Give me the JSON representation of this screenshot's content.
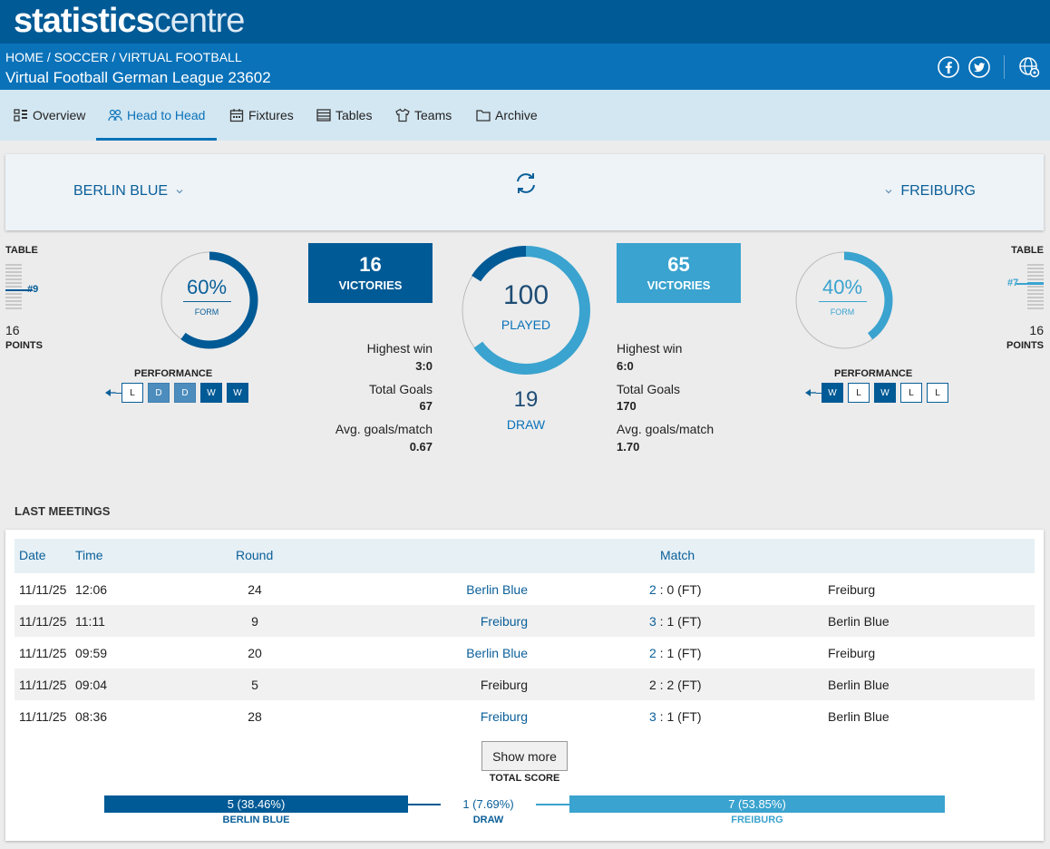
{
  "logo": {
    "bold": "statistics",
    "light": "centre"
  },
  "breadcrumb": "HOME / SOCCER / VIRTUAL FOOTBALL",
  "league_title": "Virtual Football German League 23602",
  "header_icons": [
    "facebook-icon",
    "twitter-icon",
    "globe-settings-icon"
  ],
  "tabs": [
    {
      "label": "Overview",
      "icon": "overview-icon"
    },
    {
      "label": "Head to Head",
      "icon": "head-to-head-icon",
      "active": true
    },
    {
      "label": "Fixtures",
      "icon": "calendar-icon"
    },
    {
      "label": "Tables",
      "icon": "tables-icon"
    },
    {
      "label": "Teams",
      "icon": "shirt-icon"
    },
    {
      "label": "Archive",
      "icon": "folder-icon"
    }
  ],
  "home": {
    "name": "BERLIN BLUE",
    "table_label": "TABLE",
    "position": "#9",
    "points": "16",
    "points_label": "POINTS",
    "form_value": "60%",
    "form_fraction": 0.6,
    "form_label": "FORM",
    "performance_label": "PERFORMANCE",
    "performance": [
      "L",
      "D",
      "D",
      "W",
      "W"
    ],
    "victories": "16",
    "victories_label": "VICTORIES",
    "highest_win_label": "Highest win",
    "highest_win": "3:0",
    "total_goals_label": "Total Goals",
    "total_goals": "67",
    "avg_goals_label": "Avg. goals/match",
    "avg_goals": "0.67",
    "color": "#005a96"
  },
  "away": {
    "name": "FREIBURG",
    "table_label": "TABLE",
    "position": "#7",
    "points": "16",
    "points_label": "POINTS",
    "form_value": "40%",
    "form_fraction": 0.4,
    "form_label": "FORM",
    "performance_label": "PERFORMANCE",
    "performance": [
      "W",
      "L",
      "W",
      "L",
      "L"
    ],
    "victories": "65",
    "victories_label": "VICTORIES",
    "highest_win_label": "Highest win",
    "highest_win": "6:0",
    "total_goals_label": "Total Goals",
    "total_goals": "170",
    "avg_goals_label": "Avg. goals/match",
    "avg_goals": "1.70",
    "color": "#3aa3cf"
  },
  "center": {
    "played": "100",
    "played_label": "PLAYED",
    "draw": "19",
    "draw_label": "DRAW",
    "home_share": 0.16,
    "away_share": 0.65
  },
  "last_meetings": {
    "title": "LAST MEETINGS",
    "headers": {
      "date": "Date",
      "time": "Time",
      "round": "Round",
      "match": "Match"
    },
    "rows": [
      {
        "date": "11/11/25",
        "time": "12:06",
        "round": "24",
        "home": "Berlin Blue",
        "home_win": true,
        "hs": "2",
        "as": "0",
        "status": "(FT)",
        "away": "Freiburg"
      },
      {
        "date": "11/11/25",
        "time": "11:11",
        "round": "9",
        "home": "Freiburg",
        "home_win": true,
        "hs": "3",
        "as": "1",
        "status": "(FT)",
        "away": "Berlin Blue"
      },
      {
        "date": "11/11/25",
        "time": "09:59",
        "round": "20",
        "home": "Berlin Blue",
        "home_win": true,
        "hs": "2",
        "as": "1",
        "status": "(FT)",
        "away": "Freiburg"
      },
      {
        "date": "11/11/25",
        "time": "09:04",
        "round": "5",
        "home": "Freiburg",
        "home_win": false,
        "hs": "2",
        "as": "2",
        "status": "(FT)",
        "away": "Berlin Blue"
      },
      {
        "date": "11/11/25",
        "time": "08:36",
        "round": "28",
        "home": "Freiburg",
        "home_win": true,
        "hs": "3",
        "as": "1",
        "status": "(FT)",
        "away": "Berlin Blue"
      }
    ],
    "show_more": "Show more",
    "total_score_label": "TOTAL SCORE",
    "total": {
      "home_text": "5 (38.46%)",
      "home_label": "BERLIN BLUE",
      "draw_text": "1 (7.69%)",
      "draw_label": "DRAW",
      "away_text": "7 (53.85%)",
      "away_label": "FREIBURG"
    }
  }
}
